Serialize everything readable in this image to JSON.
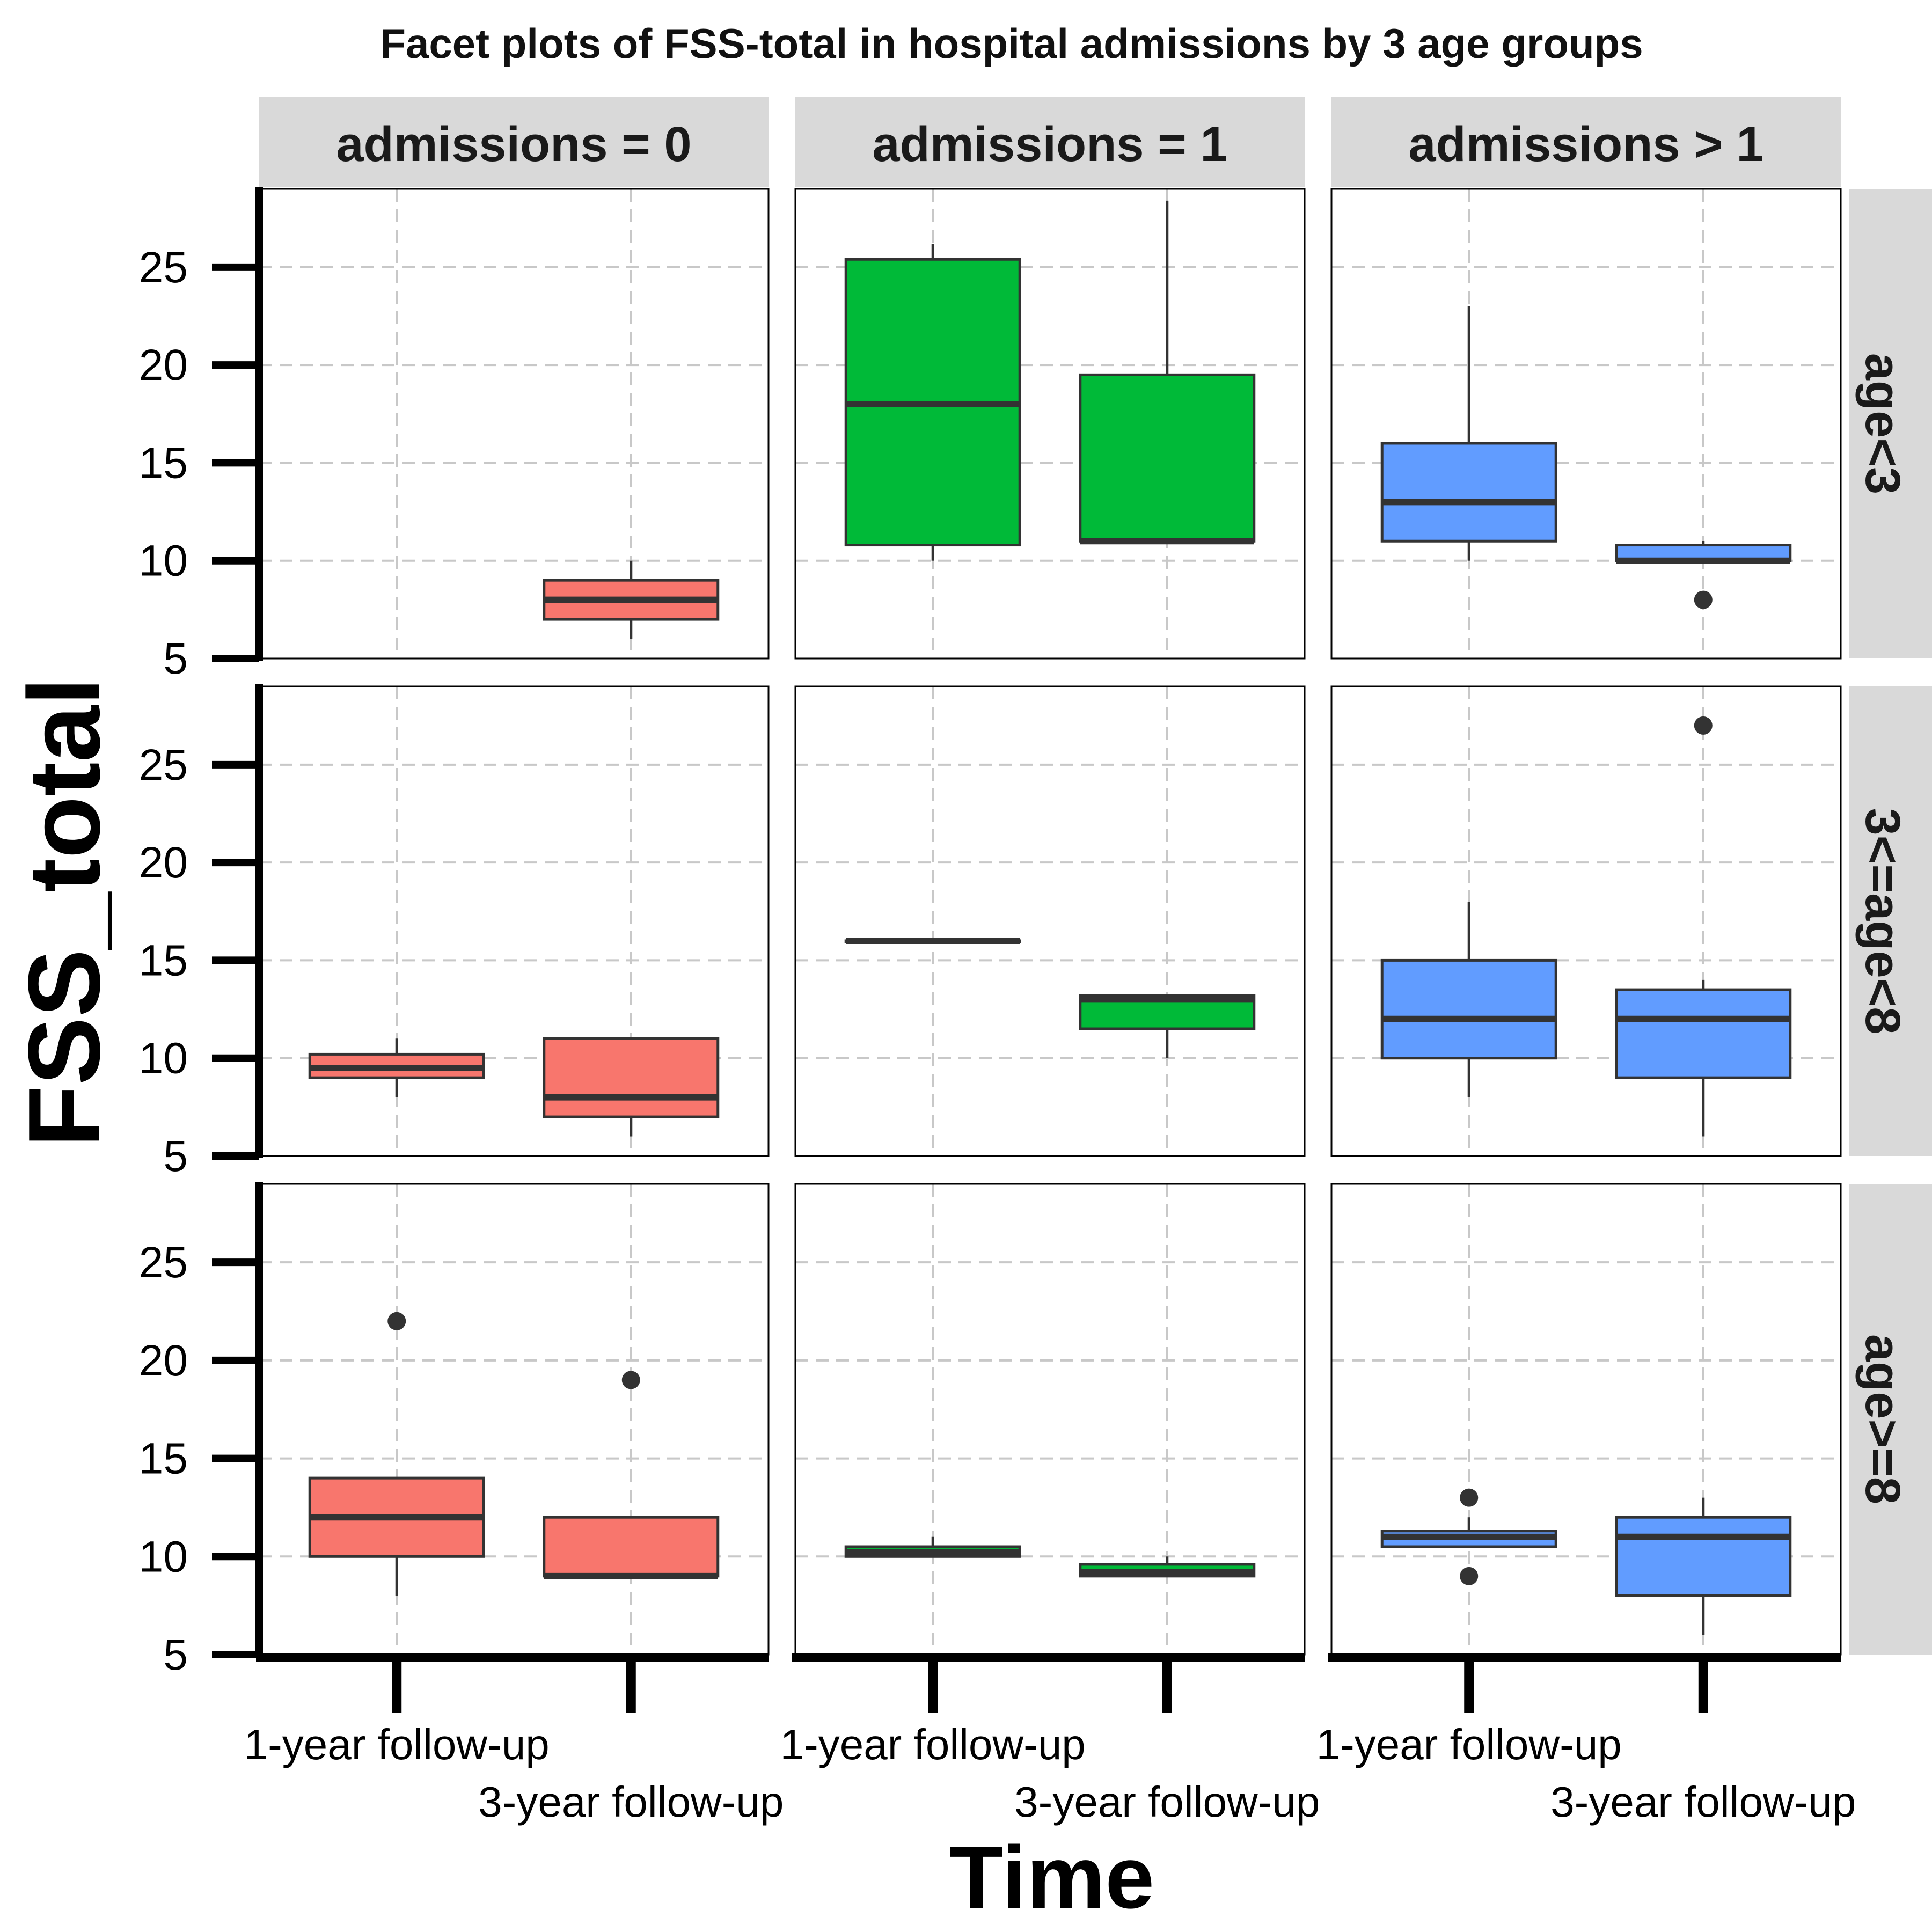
{
  "chart_data": {
    "type": "boxplot",
    "title": "Facet plots of FSS-total in hospital admissions by 3 age groups",
    "xlabel": "Time",
    "ylabel": "FSS_total",
    "ylim": [
      5,
      29
    ],
    "y_ticks": [
      5,
      10,
      15,
      20,
      25
    ],
    "grid": "dashed",
    "categories": [
      "1-year follow-up",
      "3-year follow-up"
    ],
    "col_facets": [
      "admissions = 0",
      "admissions = 1",
      "admissions > 1"
    ],
    "row_facets": [
      "age<3",
      "3<=age<8",
      "age>=8"
    ],
    "colors": {
      "admissions = 0": "#F8766D",
      "admissions = 1": "#00BA38",
      "admissions > 1": "#619CFF",
      "strip_bg": "#D9D9D9",
      "grid": "#C8C8C8",
      "box_border": "#333333"
    },
    "panels": [
      {
        "row": 0,
        "col": 0,
        "boxes": [
          null,
          {
            "min": 6,
            "q1": 7,
            "median": 8,
            "q3": 9,
            "max": 10,
            "outliers": []
          }
        ]
      },
      {
        "row": 0,
        "col": 1,
        "boxes": [
          {
            "min": 10,
            "q1": 10.8,
            "median": 18,
            "q3": 25.4,
            "max": 26.2,
            "outliers": []
          },
          {
            "min": 11,
            "q1": 11,
            "median": 11,
            "q3": 19.5,
            "max": 28.4,
            "outliers": []
          }
        ]
      },
      {
        "row": 0,
        "col": 2,
        "boxes": [
          {
            "min": 10,
            "q1": 11,
            "median": 13,
            "q3": 16,
            "max": 23,
            "outliers": []
          },
          {
            "min": 10,
            "q1": 10,
            "median": 10,
            "q3": 10.8,
            "max": 11,
            "outliers": [
              8
            ]
          }
        ]
      },
      {
        "row": 1,
        "col": 0,
        "boxes": [
          {
            "min": 8,
            "q1": 9,
            "median": 9.5,
            "q3": 10.2,
            "max": 11,
            "outliers": []
          },
          {
            "min": 6,
            "q1": 7,
            "median": 8,
            "q3": 11,
            "max": 11,
            "outliers": []
          }
        ]
      },
      {
        "row": 1,
        "col": 1,
        "boxes": [
          {
            "min": 16,
            "q1": 16,
            "median": 16,
            "q3": 16,
            "max": 16,
            "outliers": []
          },
          {
            "min": 10,
            "q1": 11.5,
            "median": 13,
            "q3": 13.2,
            "max": 13.2,
            "outliers": []
          }
        ]
      },
      {
        "row": 1,
        "col": 2,
        "boxes": [
          {
            "min": 8,
            "q1": 10,
            "median": 12,
            "q3": 15,
            "max": 18,
            "outliers": []
          },
          {
            "min": 6,
            "q1": 9,
            "median": 12,
            "q3": 13.5,
            "max": 14,
            "outliers": [
              27
            ]
          }
        ]
      },
      {
        "row": 2,
        "col": 0,
        "boxes": [
          {
            "min": 8,
            "q1": 10,
            "median": 12,
            "q3": 14,
            "max": 14,
            "outliers": [
              22
            ]
          },
          {
            "min": 9,
            "q1": 9,
            "median": 9,
            "q3": 12,
            "max": 12,
            "outliers": [
              19
            ]
          }
        ]
      },
      {
        "row": 2,
        "col": 1,
        "boxes": [
          {
            "min": 10,
            "q1": 10,
            "median": 10.2,
            "q3": 10.5,
            "max": 11,
            "outliers": []
          },
          {
            "min": 9,
            "q1": 9,
            "median": 9.2,
            "q3": 9.6,
            "max": 10,
            "outliers": []
          }
        ]
      },
      {
        "row": 2,
        "col": 2,
        "boxes": [
          {
            "min": 10.5,
            "q1": 10.5,
            "median": 11,
            "q3": 11.3,
            "max": 12,
            "outliers": [
              13,
              9
            ]
          },
          {
            "min": 6,
            "q1": 8,
            "median": 11,
            "q3": 12,
            "max": 13,
            "outliers": []
          }
        ]
      }
    ]
  }
}
